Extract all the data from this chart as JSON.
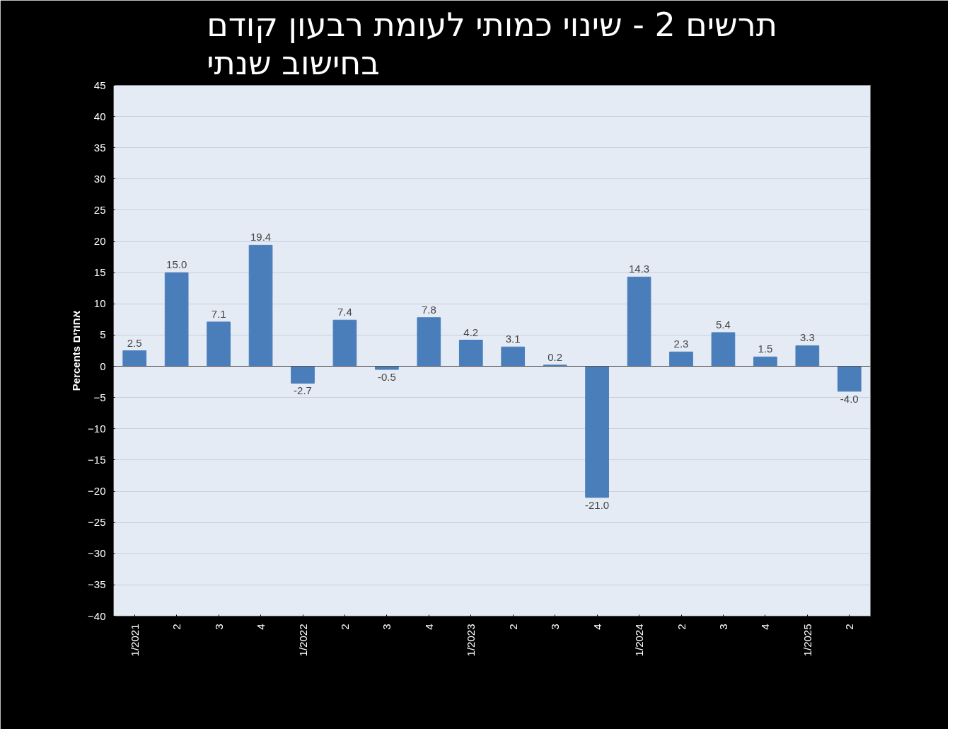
{
  "chart_data": {
    "type": "bar",
    "title": "תרשים 2 - שינוי כמותי לעומת רבעון קודם\nבחישוב שנתי",
    "ylabel": "Percents אחוזים",
    "categories": [
      "1/2021",
      "2",
      "3",
      "4",
      "1/2022",
      "2",
      "3",
      "4",
      "1/2023",
      "2",
      "3",
      "4",
      "1/2024",
      "2",
      "3",
      "4",
      "1/2025",
      "2"
    ],
    "values": [
      2.5,
      15.0,
      7.1,
      19.4,
      -2.7,
      7.4,
      -0.5,
      7.8,
      4.2,
      3.1,
      0.2,
      -21.0,
      14.3,
      2.3,
      5.4,
      1.5,
      3.3,
      -4.0
    ],
    "color": "#4a7ebb",
    "ylim": [
      -40,
      45
    ],
    "yticks": [
      -40,
      -35,
      -30,
      -25,
      -20,
      -15,
      -10,
      -5,
      0,
      5,
      10,
      15,
      20,
      25,
      30,
      35,
      40,
      45
    ],
    "grid": "y",
    "value_labels": [
      "2.5",
      "15.0",
      "7.1",
      "19.4",
      "-2.7",
      "7.4",
      "-0.5",
      "7.8",
      "4.2",
      "3.1",
      "0.2",
      "-21.0",
      "14.3",
      "2.3",
      "5.4",
      "1.5",
      "3.3",
      "-4.0"
    ]
  }
}
